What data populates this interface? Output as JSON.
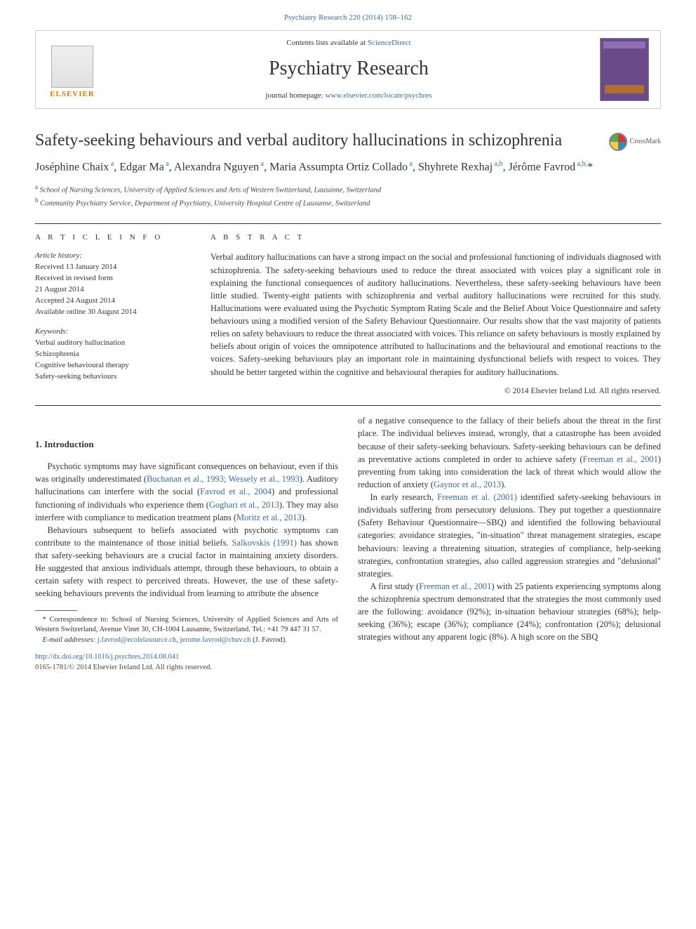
{
  "top_link": {
    "journal": "Psychiatry Research",
    "citation": "220 (2014) 158–162"
  },
  "header": {
    "contents_prefix": "Contents lists available at ",
    "contents_link": "ScienceDirect",
    "journal_name": "Psychiatry Research",
    "homepage_prefix": "journal homepage: ",
    "homepage_url": "www.elsevier.com/locate/psychres",
    "elsevier_label": "ELSEVIER"
  },
  "crossmark_label": "CrossMark",
  "title": "Safety-seeking behaviours and verbal auditory hallucinations in schizophrenia",
  "authors_html": "Joséphine Chaix<sup> a</sup>, Edgar Ma<sup> a</sup>, Alexandra Nguyen<sup> a</sup>, Maria Assumpta Ortiz Collado<sup> a</sup>, Shyhrete Rexhaj<sup> a,b</sup>, Jérôme Favrod<sup> a,b,</sup>*",
  "affiliations": {
    "a": "School of Nursing Sciences, University of Applied Sciences and Arts of Western Switzerland, Lausanne, Switzerland",
    "b": "Community Psychiatry Service, Department of Psychiatry, University Hospital Centre of Lausanne, Switzerland"
  },
  "article_info": {
    "heading": "A R T I C L E  I N F O",
    "history_label": "Article history:",
    "history": [
      "Received 13 January 2014",
      "Received in revised form",
      "21 August 2014",
      "Accepted 24 August 2014",
      "Available online 30 August 2014"
    ],
    "keywords_label": "Keywords:",
    "keywords": [
      "Verbal auditory hallucination",
      "Schizophrenia",
      "Cognitive behavioural therapy",
      "Safety-seeking behaviours"
    ]
  },
  "abstract": {
    "heading": "A B S T R A C T",
    "text": "Verbal auditory hallucinations can have a strong impact on the social and professional functioning of individuals diagnosed with schizophrenia. The safety-seeking behaviours used to reduce the threat associated with voices play a significant role in explaining the functional consequences of auditory hallucinations. Nevertheless, these safety-seeking behaviours have been little studied. Twenty-eight patients with schizophrenia and verbal auditory hallucinations were recruited for this study. Hallucinations were evaluated using the Psychotic Symptom Rating Scale and the Belief About Voice Questionnaire and safety behaviours using a modified version of the Safety Behaviour Questionnaire. Our results show that the vast majority of patients relies on safety behaviours to reduce the threat associated with voices. This reliance on safety behaviours is mostly explained by beliefs about origin of voices the omnipotence attributed to hallucinations and the behavioural and emotional reactions to the voices. Safety-seeking behaviours play an important role in maintaining dysfunctional beliefs with respect to voices. They should be better targeted within the cognitive and behavioural therapies for auditory hallucinations.",
    "copyright": "© 2014 Elsevier Ireland Ltd. All rights reserved."
  },
  "intro_heading": "1. Introduction",
  "body": {
    "p1_a": "Psychotic symptoms may have significant consequences on behaviour, even if this was originally underestimated (",
    "p1_link1": "Buchanan et al., 1993; Wessely et al., 1993",
    "p1_b": "). Auditory hallucinations can interfere with the social (",
    "p1_link2": "Favrod et al., 2004",
    "p1_c": ") and professional functioning of individuals who experience them (",
    "p1_link3": "Goghari et al., 2013",
    "p1_d": "). They may also interfere with compliance to medication treatment plans (",
    "p1_link4": "Moritz et al., 2013",
    "p1_e": ").",
    "p2_a": "Behaviours subsequent to beliefs associated with psychotic symptoms can contribute to the maintenance of those initial beliefs. ",
    "p2_link1": "Salkovskis (1991)",
    "p2_b": " has shown that safety-seeking behaviours are a crucial factor in maintaining anxiety disorders. He suggested that anxious individuals attempt, through these behaviours, to obtain a certain safety with respect to perceived threats. However, the use of these safety-seeking behaviours prevents the individual from learning to attribute the absence",
    "p3_a": "of a negative consequence to the fallacy of their beliefs about the threat in the first place. The individual believes instead, wrongly, that a catastrophe has been avoided because of their safety-seeking behaviours. Safety-seeking behaviours can be defined as preventative actions completed in order to achieve safety (",
    "p3_link1": "Freeman et al., 2001",
    "p3_b": ") preventing from taking into consideration the lack of threat which would allow the reduction of anxiety (",
    "p3_link2": "Gaynor et al., 2013",
    "p3_c": ").",
    "p4_a": "In early research, ",
    "p4_link1": "Freeman et al. (2001)",
    "p4_b": " identified safety-seeking behaviours in individuals suffering from persecutory delusions. They put together a questionnaire (Safety Behaviour Questionnaire—SBQ) and identified the following behavioural categories: avoidance strategies, \"in-situation\" threat management strategies, escape behaviours: leaving a threatening situation, strategies of compliance, help-seeking strategies, confrontation strategies, also called aggression strategies and \"delusional\" strategies.",
    "p5_a": "A first study (",
    "p5_link1": "Freeman et al., 2001",
    "p5_b": ") with 25 patients experiencing symptoms along the schizophrenia spectrum demonstrated that the strategies the most commonly used are the following: avoidance (92%); in-situation behaviour strategies (68%); help-seeking (36%); escape (36%); compliance (24%); confrontation (20%); delusional strategies without any apparent logic (8%). A high score on the SBQ"
  },
  "footnotes": {
    "corr": "* Correspondence to: School of Nursing Sciences, University of Applied Sciences and Arts of Western Switzerland, Avenue Vinet 30, CH-1004 Lausanne, Switzerland. Tel.: +41 79 447 31 57.",
    "email_label": "E-mail addresses:",
    "email1": "j.favrod@ecolelasource.ch",
    "email_sep": ", ",
    "email2": "jerome.favrod@chuv.ch",
    "email_tail": " (J. Favrod)."
  },
  "doi": "http://dx.doi.org/10.1016/j.psychres.2014.08.041",
  "issn_line": "0165-1781/© 2014 Elsevier Ireland Ltd. All rights reserved.",
  "colors": {
    "link": "#3b6aa0",
    "text": "#333333",
    "orange": "#e27900",
    "cover": "#6a4a8a"
  }
}
